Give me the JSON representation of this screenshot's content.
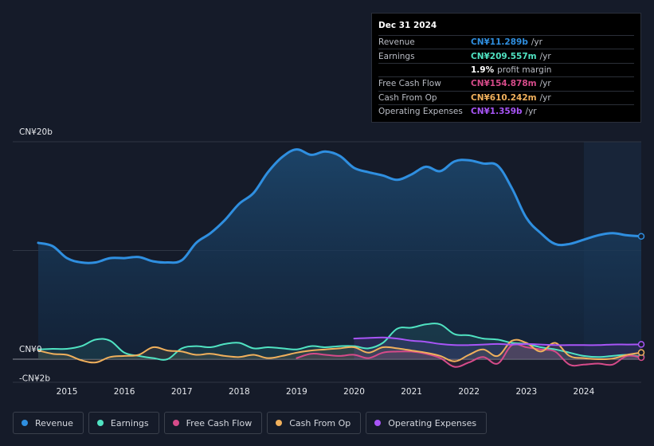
{
  "tooltip": {
    "date": "Dec 31 2024",
    "rows": [
      {
        "label": "Revenue",
        "value": "CN¥11.289b",
        "unit": "/yr",
        "color": "#2f8fe0"
      },
      {
        "label": "Earnings",
        "value": "CN¥209.557m",
        "unit": "/yr",
        "color": "#50e3c2"
      },
      {
        "label": "",
        "value": "1.9%",
        "unit": "profit margin",
        "color": "#ffffff"
      },
      {
        "label": "Free Cash Flow",
        "value": "CN¥154.878m",
        "unit": "/yr",
        "color": "#d64b8a"
      },
      {
        "label": "Cash From Op",
        "value": "CN¥610.242m",
        "unit": "/yr",
        "color": "#f0b05c"
      },
      {
        "label": "Operating Expenses",
        "value": "CN¥1.359b",
        "unit": "/yr",
        "color": "#a855f7"
      }
    ]
  },
  "legend": [
    {
      "label": "Revenue",
      "color": "#2f8fe0"
    },
    {
      "label": "Earnings",
      "color": "#50e3c2"
    },
    {
      "label": "Free Cash Flow",
      "color": "#d64b8a"
    },
    {
      "label": "Cash From Op",
      "color": "#f0b05c"
    },
    {
      "label": "Operating Expenses",
      "color": "#a855f7"
    }
  ],
  "chart_data": {
    "type": "area",
    "ylim": [
      -2,
      20
    ],
    "y_ticks": [
      {
        "value": 20,
        "label": "CN¥20b"
      },
      {
        "value": 0,
        "label": "CN¥0"
      },
      {
        "value": -2,
        "label": "-CN¥2b"
      }
    ],
    "x_ticks": [
      {
        "value": 2015,
        "label": "2015"
      },
      {
        "value": 2016,
        "label": "2016"
      },
      {
        "value": 2017,
        "label": "2017"
      },
      {
        "value": 2018,
        "label": "2018"
      },
      {
        "value": 2019,
        "label": "2019"
      },
      {
        "value": 2020,
        "label": "2020"
      },
      {
        "value": 2021,
        "label": "2021"
      },
      {
        "value": 2022,
        "label": "2022"
      },
      {
        "value": 2023,
        "label": "2023"
      },
      {
        "value": 2024,
        "label": "2024"
      }
    ],
    "xlim": [
      2014.5,
      2025.0
    ],
    "highlight_from": 2024.0,
    "series": [
      {
        "name": "Revenue",
        "color": "#2f8fe0",
        "fill": true,
        "x": [
          2014.5,
          2014.75,
          2015.0,
          2015.25,
          2015.5,
          2015.75,
          2016.0,
          2016.25,
          2016.5,
          2016.75,
          2017.0,
          2017.25,
          2017.5,
          2017.75,
          2018.0,
          2018.25,
          2018.5,
          2018.75,
          2019.0,
          2019.25,
          2019.5,
          2019.75,
          2020.0,
          2020.25,
          2020.5,
          2020.75,
          2021.0,
          2021.25,
          2021.5,
          2021.75,
          2022.0,
          2022.25,
          2022.5,
          2022.75,
          2023.0,
          2023.25,
          2023.5,
          2023.75,
          2024.0,
          2024.25,
          2024.5,
          2024.75,
          2025.0
        ],
        "y": [
          10.7,
          10.4,
          9.3,
          8.9,
          8.9,
          9.3,
          9.3,
          9.4,
          9.0,
          8.9,
          9.1,
          10.7,
          11.6,
          12.8,
          14.3,
          15.3,
          17.2,
          18.6,
          19.3,
          18.8,
          19.1,
          18.7,
          17.6,
          17.2,
          16.9,
          16.5,
          17.0,
          17.7,
          17.3,
          18.2,
          18.3,
          18.0,
          17.8,
          15.7,
          13.0,
          11.6,
          10.6,
          10.6,
          11.0,
          11.4,
          11.6,
          11.4,
          11.3
        ]
      },
      {
        "name": "Earnings",
        "color": "#50e3c2",
        "fill": false,
        "x": [
          2014.5,
          2014.75,
          2015.0,
          2015.25,
          2015.5,
          2015.75,
          2016.0,
          2016.25,
          2016.5,
          2016.75,
          2017.0,
          2017.25,
          2017.5,
          2017.75,
          2018.0,
          2018.25,
          2018.5,
          2018.75,
          2019.0,
          2019.25,
          2019.5,
          2019.75,
          2020.0,
          2020.25,
          2020.5,
          2020.75,
          2021.0,
          2021.25,
          2021.5,
          2021.75,
          2022.0,
          2022.25,
          2022.5,
          2022.75,
          2023.0,
          2023.25,
          2023.5,
          2023.75,
          2024.0,
          2024.25,
          2024.5,
          2024.75,
          2025.0
        ],
        "y": [
          0.9,
          0.95,
          0.95,
          1.2,
          1.8,
          1.7,
          0.6,
          0.3,
          0.1,
          0.0,
          1.0,
          1.2,
          1.1,
          1.4,
          1.5,
          1.0,
          1.1,
          1.0,
          0.9,
          1.2,
          1.1,
          1.2,
          1.2,
          1.0,
          1.5,
          2.8,
          2.9,
          3.2,
          3.2,
          2.3,
          2.2,
          1.9,
          1.8,
          1.5,
          1.4,
          1.1,
          0.9,
          0.6,
          0.3,
          0.2,
          0.3,
          0.4,
          0.21
        ]
      },
      {
        "name": "Free Cash Flow",
        "color": "#d64b8a",
        "fill": false,
        "x": [
          2019.0,
          2019.25,
          2019.5,
          2019.75,
          2020.0,
          2020.25,
          2020.5,
          2020.75,
          2021.0,
          2021.25,
          2021.5,
          2021.75,
          2022.0,
          2022.25,
          2022.5,
          2022.75,
          2023.0,
          2023.25,
          2023.5,
          2023.75,
          2024.0,
          2024.25,
          2024.5,
          2024.75,
          2025.0
        ],
        "y": [
          0.1,
          0.5,
          0.4,
          0.3,
          0.4,
          0.1,
          0.6,
          0.7,
          0.7,
          0.5,
          0.1,
          -0.7,
          -0.3,
          0.2,
          -0.4,
          1.3,
          1.1,
          0.9,
          0.7,
          -0.5,
          -0.5,
          -0.4,
          -0.5,
          0.3,
          0.15
        ]
      },
      {
        "name": "Cash From Op",
        "color": "#f0b05c",
        "fill": false,
        "x": [
          2014.5,
          2014.75,
          2015.0,
          2015.25,
          2015.5,
          2015.75,
          2016.0,
          2016.25,
          2016.5,
          2016.75,
          2017.0,
          2017.25,
          2017.5,
          2017.75,
          2018.0,
          2018.25,
          2018.5,
          2018.75,
          2019.0,
          2019.25,
          2019.5,
          2019.75,
          2020.0,
          2020.25,
          2020.5,
          2020.75,
          2021.0,
          2021.25,
          2021.5,
          2021.75,
          2022.0,
          2022.25,
          2022.5,
          2022.75,
          2023.0,
          2023.25,
          2023.5,
          2023.75,
          2024.0,
          2024.25,
          2024.5,
          2024.75,
          2025.0
        ],
        "y": [
          0.8,
          0.5,
          0.4,
          -0.1,
          -0.3,
          0.2,
          0.3,
          0.4,
          1.1,
          0.8,
          0.7,
          0.4,
          0.5,
          0.3,
          0.2,
          0.4,
          0.1,
          0.3,
          0.6,
          0.8,
          0.9,
          1.0,
          1.1,
          0.6,
          1.1,
          1.0,
          0.8,
          0.6,
          0.3,
          -0.2,
          0.4,
          0.9,
          0.3,
          1.7,
          1.5,
          0.7,
          1.5,
          0.3,
          0.1,
          0.0,
          0.05,
          0.4,
          0.61
        ]
      },
      {
        "name": "Operating Expenses",
        "color": "#a855f7",
        "fill": true,
        "x": [
          2020.0,
          2020.25,
          2020.5,
          2020.75,
          2021.0,
          2021.25,
          2021.5,
          2021.75,
          2022.0,
          2022.25,
          2022.5,
          2022.75,
          2023.0,
          2023.25,
          2023.5,
          2023.75,
          2024.0,
          2024.25,
          2024.5,
          2024.75,
          2025.0
        ],
        "y": [
          1.9,
          1.95,
          2.0,
          1.9,
          1.7,
          1.6,
          1.4,
          1.3,
          1.3,
          1.35,
          1.4,
          1.35,
          1.4,
          1.35,
          1.3,
          1.3,
          1.3,
          1.3,
          1.35,
          1.35,
          1.36
        ]
      }
    ]
  }
}
